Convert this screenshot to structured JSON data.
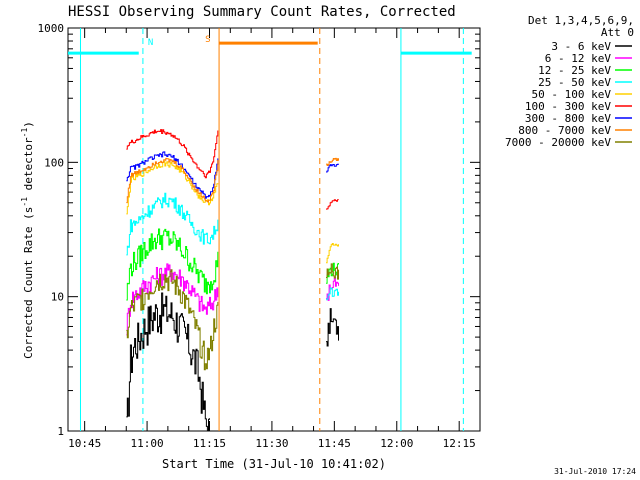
{
  "chart_data": {
    "type": "line",
    "title": "HESSI Observing Summary Count Rates, Corrected",
    "xlabel": "Start Time (31-Jul-10 10:41:02)",
    "ylabel_main": "Corrected Count Rate (s",
    "ylabel_sup1": "-1",
    "ylabel_mid": " detector",
    "ylabel_sup2": "-1",
    "ylabel_end": ")",
    "yscale": "log",
    "xlim": [
      "10:41",
      "12:20"
    ],
    "ylim": [
      1,
      1000
    ],
    "x_ticks": [
      "10:45",
      "11:00",
      "11:15",
      "11:30",
      "11:45",
      "12:00",
      "12:15"
    ],
    "x_tick_minutes": [
      45,
      60,
      75,
      90,
      105,
      120,
      135
    ],
    "y_ticks": [
      "1",
      "10",
      "100",
      "1000"
    ],
    "y_tick_values": [
      1,
      10,
      100,
      1000
    ],
    "legend_header": [
      "Det 1,3,4,5,6,9,",
      "Att 0"
    ],
    "footer_date": "31-Jul-2010 17:24",
    "markers": {
      "night_label": "N",
      "saa_label": "S",
      "night_color": "#00ffff",
      "saa_color": "#ff8000"
    },
    "series": [
      {
        "name": "3 - 6 keV",
        "color": "#000000",
        "seg1": [
          [
            55,
            1
          ],
          [
            56,
            3.4
          ],
          [
            57,
            4.5
          ],
          [
            58,
            5
          ],
          [
            60,
            6.5
          ],
          [
            62,
            7.6
          ],
          [
            64,
            8
          ],
          [
            66,
            7.4
          ],
          [
            68,
            6
          ],
          [
            70,
            4.5
          ],
          [
            72,
            3
          ],
          [
            73,
            2
          ],
          [
            74,
            1.2
          ],
          [
            75,
            1
          ]
        ],
        "seg2": [
          [
            103,
            5
          ],
          [
            104,
            6.8
          ],
          [
            105,
            6.7
          ],
          [
            106,
            5.8
          ]
        ]
      },
      {
        "name": "6 - 12 keV",
        "color": "#ff00ff",
        "seg1": [
          [
            55,
            6
          ],
          [
            56,
            9.5
          ],
          [
            58,
            11
          ],
          [
            60,
            12.5
          ],
          [
            62,
            14
          ],
          [
            64,
            15
          ],
          [
            66,
            15.5
          ],
          [
            68,
            14
          ],
          [
            70,
            12
          ],
          [
            72,
            9.5
          ],
          [
            74,
            8
          ],
          [
            75,
            8.5
          ],
          [
            76,
            9.5
          ],
          [
            77,
            12
          ]
        ],
        "seg2": [
          [
            103,
            9
          ],
          [
            104,
            12
          ],
          [
            105,
            12.5
          ],
          [
            106,
            12
          ]
        ]
      },
      {
        "name": "12 - 25 keV",
        "color": "#00ff00",
        "seg1": [
          [
            55,
            10
          ],
          [
            56,
            17
          ],
          [
            58,
            20
          ],
          [
            60,
            24
          ],
          [
            62,
            27
          ],
          [
            64,
            28
          ],
          [
            66,
            26.5
          ],
          [
            68,
            23
          ],
          [
            70,
            19
          ],
          [
            72,
            15
          ],
          [
            74,
            12.5
          ],
          [
            75,
            13
          ],
          [
            76,
            15
          ],
          [
            77,
            19
          ]
        ],
        "seg2": [
          [
            103,
            13
          ],
          [
            104,
            16
          ],
          [
            105,
            16
          ],
          [
            106,
            16
          ]
        ]
      },
      {
        "name": "25 - 50 keV",
        "color": "#00ffff",
        "seg1": [
          [
            55,
            20
          ],
          [
            56,
            34
          ],
          [
            58,
            37
          ],
          [
            60,
            43
          ],
          [
            62,
            48
          ],
          [
            64,
            53
          ],
          [
            66,
            52
          ],
          [
            68,
            45
          ],
          [
            70,
            37
          ],
          [
            72,
            31
          ],
          [
            74,
            27
          ],
          [
            75,
            27
          ],
          [
            76,
            30
          ],
          [
            77,
            36
          ]
        ],
        "seg2": [
          [
            103,
            9
          ],
          [
            104,
            11
          ],
          [
            105,
            10.5
          ],
          [
            106,
            11
          ]
        ]
      },
      {
        "name": "50 - 100 keV",
        "color": "#ffd000",
        "seg1": [
          [
            55,
            40
          ],
          [
            56,
            73
          ],
          [
            58,
            80
          ],
          [
            60,
            86
          ],
          [
            62,
            94
          ],
          [
            64,
            98
          ],
          [
            66,
            96
          ],
          [
            68,
            87
          ],
          [
            70,
            72
          ],
          [
            72,
            58
          ],
          [
            74,
            50
          ],
          [
            75,
            51
          ],
          [
            76,
            58
          ],
          [
            77,
            70
          ]
        ],
        "seg2": [
          [
            103,
            18
          ],
          [
            104,
            24
          ],
          [
            105,
            24.5
          ],
          [
            106,
            24
          ]
        ]
      },
      {
        "name": "100 - 300 keV",
        "color": "#ff0000",
        "seg1": [
          [
            55,
            130
          ],
          [
            56,
            140
          ],
          [
            58,
            150
          ],
          [
            60,
            160
          ],
          [
            62,
            170
          ],
          [
            64,
            170
          ],
          [
            66,
            160
          ],
          [
            68,
            140
          ],
          [
            70,
            115
          ],
          [
            72,
            93
          ],
          [
            74,
            80
          ],
          [
            75,
            85
          ],
          [
            76,
            110
          ],
          [
            77,
            175
          ]
        ],
        "seg2": [
          [
            103,
            44
          ],
          [
            104,
            50
          ],
          [
            105,
            52
          ],
          [
            106,
            53
          ]
        ]
      },
      {
        "name": "300 - 800 keV",
        "color": "#0000ff",
        "seg1": [
          [
            55,
            74
          ],
          [
            56,
            90
          ],
          [
            58,
            95
          ],
          [
            60,
            104
          ],
          [
            62,
            110
          ],
          [
            64,
            115
          ],
          [
            66,
            110
          ],
          [
            68,
            97
          ],
          [
            70,
            80
          ],
          [
            72,
            64
          ],
          [
            74,
            56
          ],
          [
            75,
            56
          ],
          [
            76,
            70
          ],
          [
            77,
            110
          ]
        ],
        "seg2": [
          [
            103,
            85
          ],
          [
            104,
            95
          ],
          [
            105,
            95
          ],
          [
            106,
            96
          ]
        ]
      },
      {
        "name": "800 - 7000 keV",
        "color": "#ff8000",
        "seg1": [
          [
            55,
            50
          ],
          [
            56,
            80
          ],
          [
            58,
            85
          ],
          [
            60,
            92
          ],
          [
            62,
            100
          ],
          [
            64,
            104
          ],
          [
            66,
            102
          ],
          [
            68,
            92
          ],
          [
            70,
            76
          ],
          [
            72,
            61
          ],
          [
            74,
            53
          ],
          [
            75,
            52
          ],
          [
            76,
            64
          ],
          [
            77,
            100
          ]
        ],
        "seg2": [
          [
            103,
            95
          ],
          [
            104,
            102
          ],
          [
            105,
            105
          ],
          [
            106,
            104
          ]
        ]
      },
      {
        "name": "7000 - 20000 keV",
        "color": "#808000",
        "seg1": [
          [
            55,
            5
          ],
          [
            56,
            8
          ],
          [
            58,
            9.5
          ],
          [
            60,
            11
          ],
          [
            62,
            13
          ],
          [
            64,
            14
          ],
          [
            66,
            13
          ],
          [
            68,
            11
          ],
          [
            70,
            8
          ],
          [
            72,
            5.5
          ],
          [
            73,
            4.2
          ],
          [
            74,
            3.5
          ],
          [
            75,
            3.8
          ],
          [
            76,
            6
          ],
          [
            77,
            8
          ]
        ],
        "seg2": [
          [
            103,
            14
          ],
          [
            104,
            15.5
          ],
          [
            105,
            15.5
          ],
          [
            106,
            15
          ]
        ]
      }
    ]
  }
}
